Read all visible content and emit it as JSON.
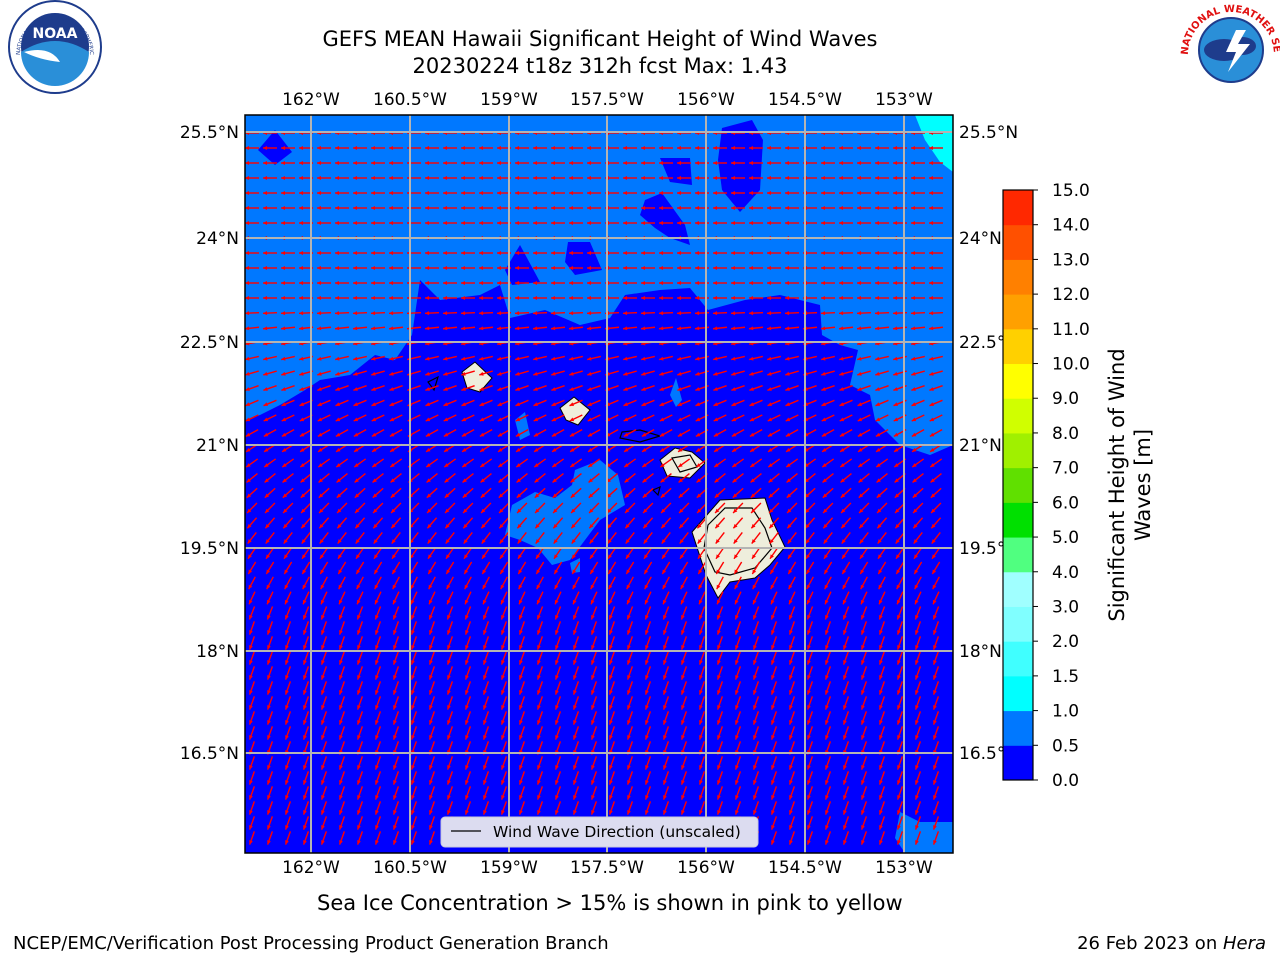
{
  "title_line1": "GEFS MEAN Hawaii Significant Height of Wind Waves",
  "title_line2": "20230224 t18z 312h fcst   Max: 1.43",
  "lon_labels": [
    "162°W",
    "160.5°W",
    "159°W",
    "157.5°W",
    "156°W",
    "154.5°W",
    "153°W"
  ],
  "lat_labels": [
    "25.5°N",
    "24°N",
    "22.5°N",
    "21°N",
    "19.5°N",
    "18°N",
    "16.5°N"
  ],
  "legend_label": "Wind Wave Direction (unscaled)",
  "colorbar": {
    "label": "Significant Height of Wind Waves [m]",
    "label_line1": "Significant Height of Wind",
    "label_line2": "Waves [m]",
    "ticks": [
      "0.0",
      "0.5",
      "1.0",
      "1.5",
      "2.0",
      "3.0",
      "4.0",
      "5.0",
      "6.0",
      "7.0",
      "8.0",
      "9.0",
      "10.0",
      "11.0",
      "12.0",
      "13.0",
      "14.0",
      "15.0"
    ],
    "colors": [
      "#0000ff",
      "#0078ff",
      "#00ffff",
      "#40ffff",
      "#80ffff",
      "#a0ffff",
      "#50ff80",
      "#00e000",
      "#60e000",
      "#a0f000",
      "#d0ff00",
      "#ffff00",
      "#ffd000",
      "#ffa000",
      "#ff8000",
      "#ff5000",
      "#ff2800",
      "#ff0000"
    ]
  },
  "map_colors": {
    "low_wave": "#0000ff",
    "mid_wave": "#0078ff",
    "high_wave": "#00ffff",
    "land": "#eeeedc",
    "arrow": "#ff0000",
    "grid": "#b4b4b4"
  },
  "subtitle": "Sea Ice Concentration > 15% is shown in pink to yellow",
  "footer_left": "NCEP/EMC/Verification Post Processing Product Generation Branch",
  "footer_date": "26 Feb 2023 on ",
  "footer_machine": "Hera",
  "logos": {
    "noaa_text": "NOAA",
    "noaa_ring": "NATIONAL OCEANIC AND ATMOSPHERIC ADMINISTRATION · U.S. DEPARTMENT OF COMMERCE",
    "nws_ring": "NATIONAL WEATHER SERVICE"
  }
}
